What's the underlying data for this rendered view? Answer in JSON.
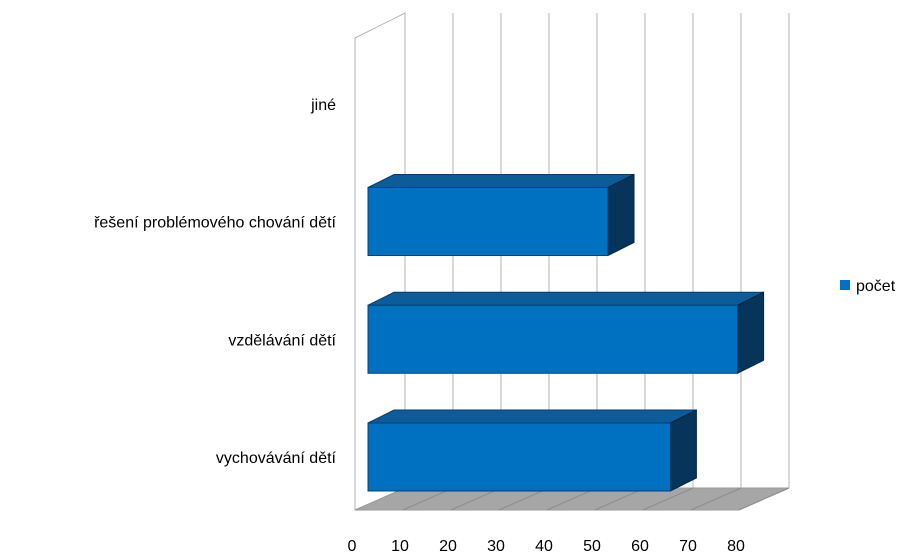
{
  "chart_data": {
    "type": "bar",
    "orientation": "horizontal",
    "three_d": true,
    "categories": [
      "vychovávání dětí",
      "vzdělávání dětí",
      "řešení problémového chování dětí",
      "jiné"
    ],
    "series": [
      {
        "name": "počet",
        "values": [
          63,
          77,
          50,
          0
        ],
        "color": "#0070C0"
      }
    ],
    "xlim": [
      0,
      80
    ],
    "xticks": [
      "0",
      "10",
      "20",
      "30",
      "40",
      "50",
      "60",
      "70",
      "80"
    ],
    "grid": true,
    "legend": "right",
    "floor_color": "#A6A6A6"
  }
}
